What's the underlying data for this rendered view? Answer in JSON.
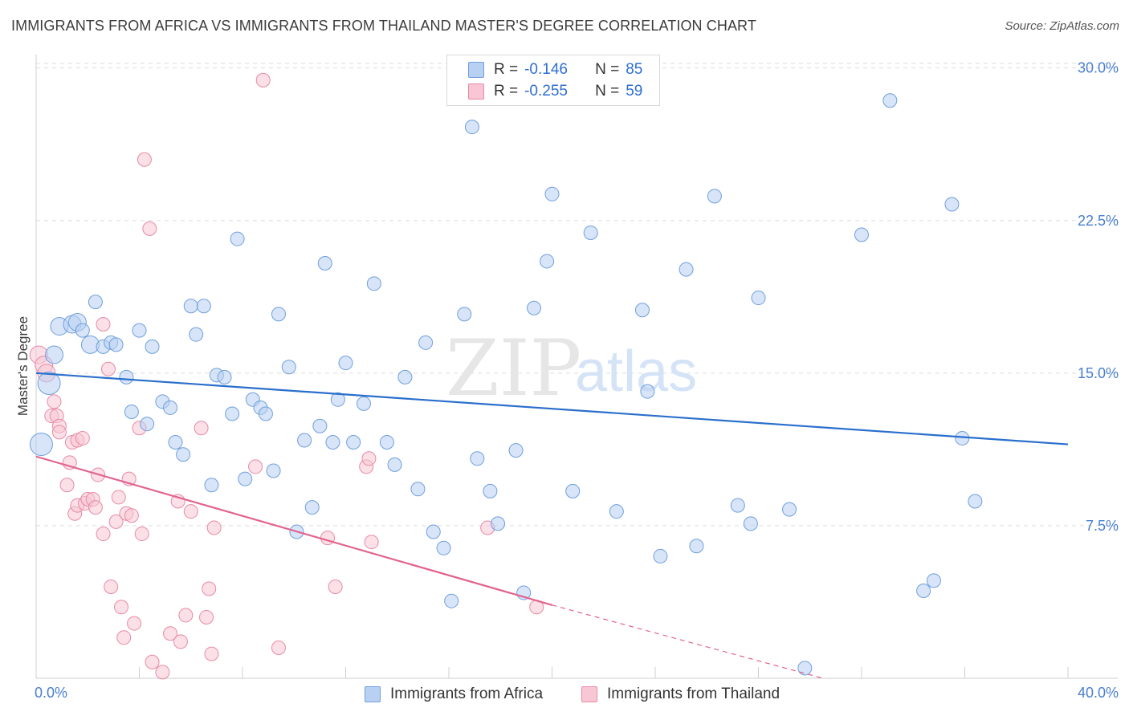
{
  "header": {
    "title": "IMMIGRANTS FROM AFRICA VS IMMIGRANTS FROM THAILAND MASTER'S DEGREE CORRELATION CHART",
    "source": "Source: ZipAtlas.com"
  },
  "legend": {
    "africa": {
      "r_label": "R =",
      "r_value": "-0.146",
      "n_label": "N =",
      "n_value": "85"
    },
    "thailand": {
      "r_label": "R =",
      "r_value": "-0.255",
      "n_label": "N =",
      "n_value": "59"
    }
  },
  "watermark": {
    "zip": "ZIP",
    "atlas": "atlas"
  },
  "colors": {
    "africa_fill": "#b8d0f2",
    "africa_stroke": "#6f9fdd",
    "africa_line": "#2a6fcc",
    "thailand_fill": "#f8c6d4",
    "thailand_stroke": "#e88aa6",
    "thailand_line": "#e2638f",
    "grid": "#dddddd",
    "axis_text": "#4a7fd0"
  },
  "chart_data": {
    "type": "scatter",
    "title": "IMMIGRANTS FROM AFRICA VS IMMIGRANTS FROM THAILAND MASTER'S DEGREE CORRELATION CHART",
    "xlabel": "",
    "ylabel": "Master's Degree",
    "xlim": [
      0,
      40
    ],
    "ylim": [
      0,
      30.5
    ],
    "x_tick_labels": [
      "0.0%",
      "40.0%"
    ],
    "y_ticks": [
      7.5,
      15.0,
      22.5,
      30.0
    ],
    "y_tick_labels": [
      "7.5%",
      "15.0%",
      "22.5%",
      "30.0%"
    ],
    "legend_position": "top-center",
    "series": [
      {
        "name": "Immigrants from Africa",
        "r": -0.146,
        "n": 85,
        "trend": {
          "x": [
            0,
            40
          ],
          "y": [
            15.0,
            11.5
          ]
        },
        "points": [
          [
            0.2,
            11.5,
            3
          ],
          [
            0.5,
            14.5,
            3
          ],
          [
            0.7,
            15.9,
            2
          ],
          [
            0.9,
            17.3,
            2
          ],
          [
            1.4,
            17.4,
            2
          ],
          [
            1.6,
            17.5,
            2
          ],
          [
            1.8,
            17.1,
            1
          ],
          [
            2.1,
            16.4,
            2
          ],
          [
            2.3,
            18.5,
            1
          ],
          [
            2.6,
            16.3,
            1
          ],
          [
            2.9,
            16.5,
            1
          ],
          [
            3.1,
            16.4,
            1
          ],
          [
            3.5,
            14.8,
            1
          ],
          [
            3.7,
            13.1,
            1
          ],
          [
            4.0,
            17.1,
            1
          ],
          [
            4.3,
            12.5,
            1
          ],
          [
            4.5,
            16.3,
            1
          ],
          [
            4.9,
            13.6,
            1
          ],
          [
            5.2,
            13.3,
            1
          ],
          [
            5.4,
            11.6,
            1
          ],
          [
            5.7,
            11.0,
            1
          ],
          [
            6.0,
            18.3,
            1
          ],
          [
            6.2,
            16.9,
            1
          ],
          [
            6.5,
            18.3,
            1
          ],
          [
            6.8,
            9.5,
            1
          ],
          [
            7.0,
            14.9,
            1
          ],
          [
            7.3,
            14.8,
            1
          ],
          [
            7.6,
            13.0,
            1
          ],
          [
            7.8,
            21.6,
            1
          ],
          [
            8.1,
            9.8,
            1
          ],
          [
            8.4,
            13.7,
            1
          ],
          [
            8.7,
            13.3,
            1
          ],
          [
            8.9,
            13.0,
            1
          ],
          [
            9.2,
            10.2,
            1
          ],
          [
            9.4,
            17.9,
            1
          ],
          [
            9.8,
            15.3,
            1
          ],
          [
            10.1,
            7.2,
            1
          ],
          [
            10.4,
            11.7,
            1
          ],
          [
            10.7,
            8.4,
            1
          ],
          [
            11.0,
            12.4,
            1
          ],
          [
            11.2,
            20.4,
            1
          ],
          [
            11.5,
            11.6,
            1
          ],
          [
            11.7,
            13.7,
            1
          ],
          [
            12.0,
            15.5,
            1
          ],
          [
            12.3,
            11.6,
            1
          ],
          [
            12.7,
            13.5,
            1
          ],
          [
            13.1,
            19.4,
            1
          ],
          [
            13.6,
            11.6,
            1
          ],
          [
            13.9,
            10.5,
            1
          ],
          [
            14.3,
            14.8,
            1
          ],
          [
            14.8,
            9.3,
            1
          ],
          [
            15.1,
            16.5,
            1
          ],
          [
            15.4,
            7.2,
            1
          ],
          [
            15.8,
            6.4,
            1
          ],
          [
            16.1,
            3.8,
            1
          ],
          [
            16.6,
            17.9,
            1
          ],
          [
            16.9,
            27.1,
            1
          ],
          [
            17.1,
            10.8,
            1
          ],
          [
            17.6,
            9.2,
            1
          ],
          [
            17.9,
            7.6,
            1
          ],
          [
            18.6,
            11.2,
            1
          ],
          [
            18.9,
            4.2,
            1
          ],
          [
            19.3,
            18.2,
            1
          ],
          [
            19.8,
            20.5,
            1
          ],
          [
            20.0,
            23.8,
            1
          ],
          [
            20.8,
            9.2,
            1
          ],
          [
            21.5,
            21.9,
            1
          ],
          [
            22.5,
            8.2,
            1
          ],
          [
            23.5,
            18.1,
            1
          ],
          [
            23.7,
            14.1,
            1
          ],
          [
            24.2,
            6.0,
            1
          ],
          [
            25.2,
            20.1,
            1
          ],
          [
            25.6,
            6.5,
            1
          ],
          [
            26.3,
            23.7,
            1
          ],
          [
            27.2,
            8.5,
            1
          ],
          [
            27.7,
            7.6,
            1
          ],
          [
            28.0,
            18.7,
            1
          ],
          [
            29.2,
            8.3,
            1
          ],
          [
            29.8,
            0.5,
            1
          ],
          [
            32.0,
            21.8,
            1
          ],
          [
            33.1,
            28.4,
            1
          ],
          [
            34.4,
            4.3,
            1
          ],
          [
            34.8,
            4.8,
            1
          ],
          [
            35.5,
            23.3,
            1
          ],
          [
            35.9,
            11.8,
            1
          ],
          [
            36.4,
            8.7,
            1
          ]
        ]
      },
      {
        "name": "Immigrants from Thailand",
        "r": -0.255,
        "n": 59,
        "trend": {
          "x": [
            0,
            20
          ],
          "y": [
            10.9,
            3.6
          ]
        },
        "trend_dashed": {
          "x": [
            20,
            30.5
          ],
          "y": [
            3.6,
            0.0
          ]
        },
        "points": [
          [
            0.1,
            15.9,
            2
          ],
          [
            0.3,
            15.4,
            2
          ],
          [
            0.4,
            15.0,
            2
          ],
          [
            0.6,
            12.9,
            1
          ],
          [
            0.7,
            13.6,
            1
          ],
          [
            0.8,
            12.9,
            1
          ],
          [
            0.9,
            12.4,
            1
          ],
          [
            0.9,
            12.1,
            1
          ],
          [
            1.2,
            9.5,
            1
          ],
          [
            1.3,
            10.6,
            1
          ],
          [
            1.4,
            11.6,
            1
          ],
          [
            1.5,
            8.1,
            1
          ],
          [
            1.6,
            8.5,
            1
          ],
          [
            1.6,
            11.7,
            1
          ],
          [
            1.8,
            11.8,
            1
          ],
          [
            1.9,
            8.6,
            1
          ],
          [
            2.0,
            8.8,
            1
          ],
          [
            2.2,
            8.8,
            1
          ],
          [
            2.3,
            8.4,
            1
          ],
          [
            2.4,
            10.0,
            1
          ],
          [
            2.6,
            7.1,
            1
          ],
          [
            2.6,
            17.4,
            1
          ],
          [
            2.8,
            15.2,
            1
          ],
          [
            2.9,
            4.5,
            1
          ],
          [
            3.1,
            7.7,
            1
          ],
          [
            3.2,
            8.9,
            1
          ],
          [
            3.3,
            3.5,
            1
          ],
          [
            3.4,
            2.0,
            1
          ],
          [
            3.5,
            8.1,
            1
          ],
          [
            3.6,
            9.8,
            1
          ],
          [
            3.7,
            8.0,
            1
          ],
          [
            3.8,
            2.7,
            1
          ],
          [
            4.0,
            12.3,
            1
          ],
          [
            4.1,
            7.1,
            1
          ],
          [
            4.2,
            25.5,
            1
          ],
          [
            4.4,
            22.1,
            1
          ],
          [
            4.5,
            0.8,
            1
          ],
          [
            4.9,
            0.3,
            1
          ],
          [
            5.2,
            2.2,
            1
          ],
          [
            5.5,
            8.7,
            1
          ],
          [
            5.6,
            1.8,
            1
          ],
          [
            5.8,
            3.1,
            1
          ],
          [
            6.0,
            8.2,
            1
          ],
          [
            6.4,
            12.3,
            1
          ],
          [
            6.6,
            3.0,
            1
          ],
          [
            6.7,
            4.4,
            1
          ],
          [
            6.8,
            1.2,
            1
          ],
          [
            6.9,
            7.4,
            1
          ],
          [
            8.5,
            10.4,
            1
          ],
          [
            8.8,
            29.4,
            1
          ],
          [
            9.4,
            1.5,
            1
          ],
          [
            11.3,
            6.9,
            1
          ],
          [
            11.6,
            4.5,
            1
          ],
          [
            12.8,
            10.4,
            1
          ],
          [
            12.9,
            10.8,
            1
          ],
          [
            13.0,
            6.7,
            1
          ],
          [
            17.5,
            7.4,
            1
          ],
          [
            19.4,
            3.5,
            1
          ]
        ]
      }
    ]
  },
  "bottom_legend": {
    "africa_label": "Immigrants from Africa",
    "thailand_label": "Immigrants from Thailand"
  }
}
